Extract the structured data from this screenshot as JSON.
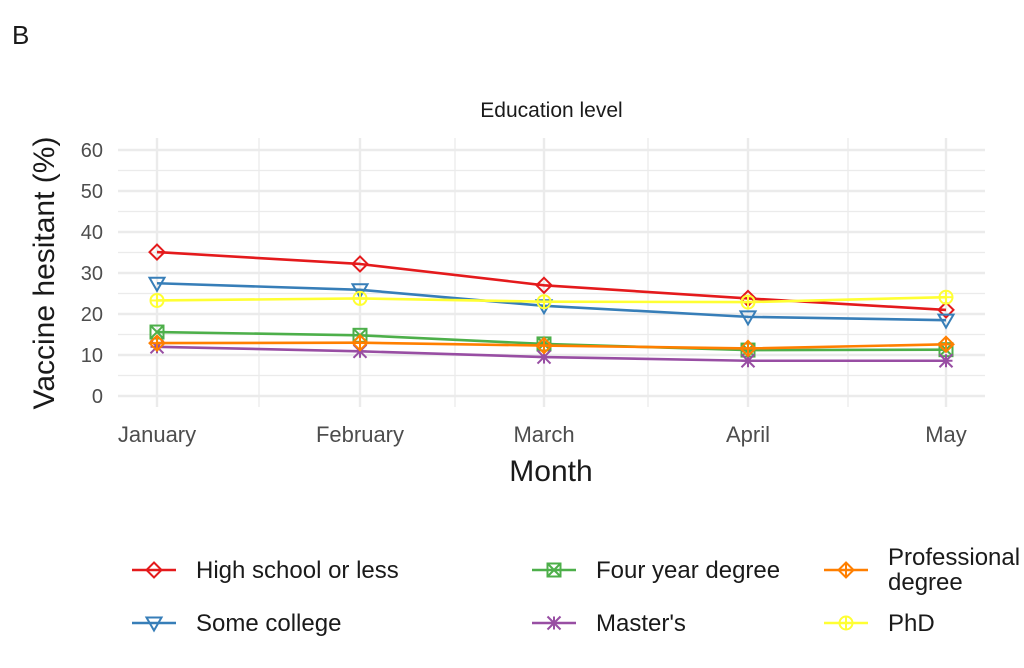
{
  "panel_label": "B",
  "chart_data": {
    "type": "line",
    "title": "Education level",
    "xlabel": "Month",
    "ylabel": "Vaccine hesitant (%)",
    "x": [
      "January",
      "February",
      "March",
      "April",
      "May"
    ],
    "yticks": [
      0,
      10,
      20,
      30,
      40,
      50,
      60
    ],
    "ylim": [
      0,
      60
    ],
    "grid": true,
    "legend_position": "bottom",
    "series": [
      {
        "name": "High school or less",
        "color": "#e41a1c",
        "marker": "diamond",
        "values": [
          35.1,
          32.2,
          27.0,
          23.8,
          21.0
        ]
      },
      {
        "name": "Some college",
        "color": "#377eb8",
        "marker": "triangle-down",
        "values": [
          27.5,
          25.9,
          22.0,
          19.3,
          18.5
        ]
      },
      {
        "name": "Four year degree",
        "color": "#4daf4a",
        "marker": "square-cross",
        "values": [
          15.6,
          14.8,
          12.7,
          11.2,
          11.3
        ]
      },
      {
        "name": "Master's",
        "color": "#984ea3",
        "marker": "asterisk",
        "values": [
          12.0,
          10.9,
          9.5,
          8.6,
          8.6
        ]
      },
      {
        "name": "Professional\n degree",
        "color": "#ff7f00",
        "marker": "diamond-plus",
        "values": [
          12.9,
          13.0,
          12.3,
          11.6,
          12.6
        ]
      },
      {
        "name": "PhD",
        "color": "#ffff33",
        "marker": "circle-plus",
        "values": [
          23.3,
          23.8,
          23.0,
          22.9,
          24.1
        ]
      }
    ]
  }
}
